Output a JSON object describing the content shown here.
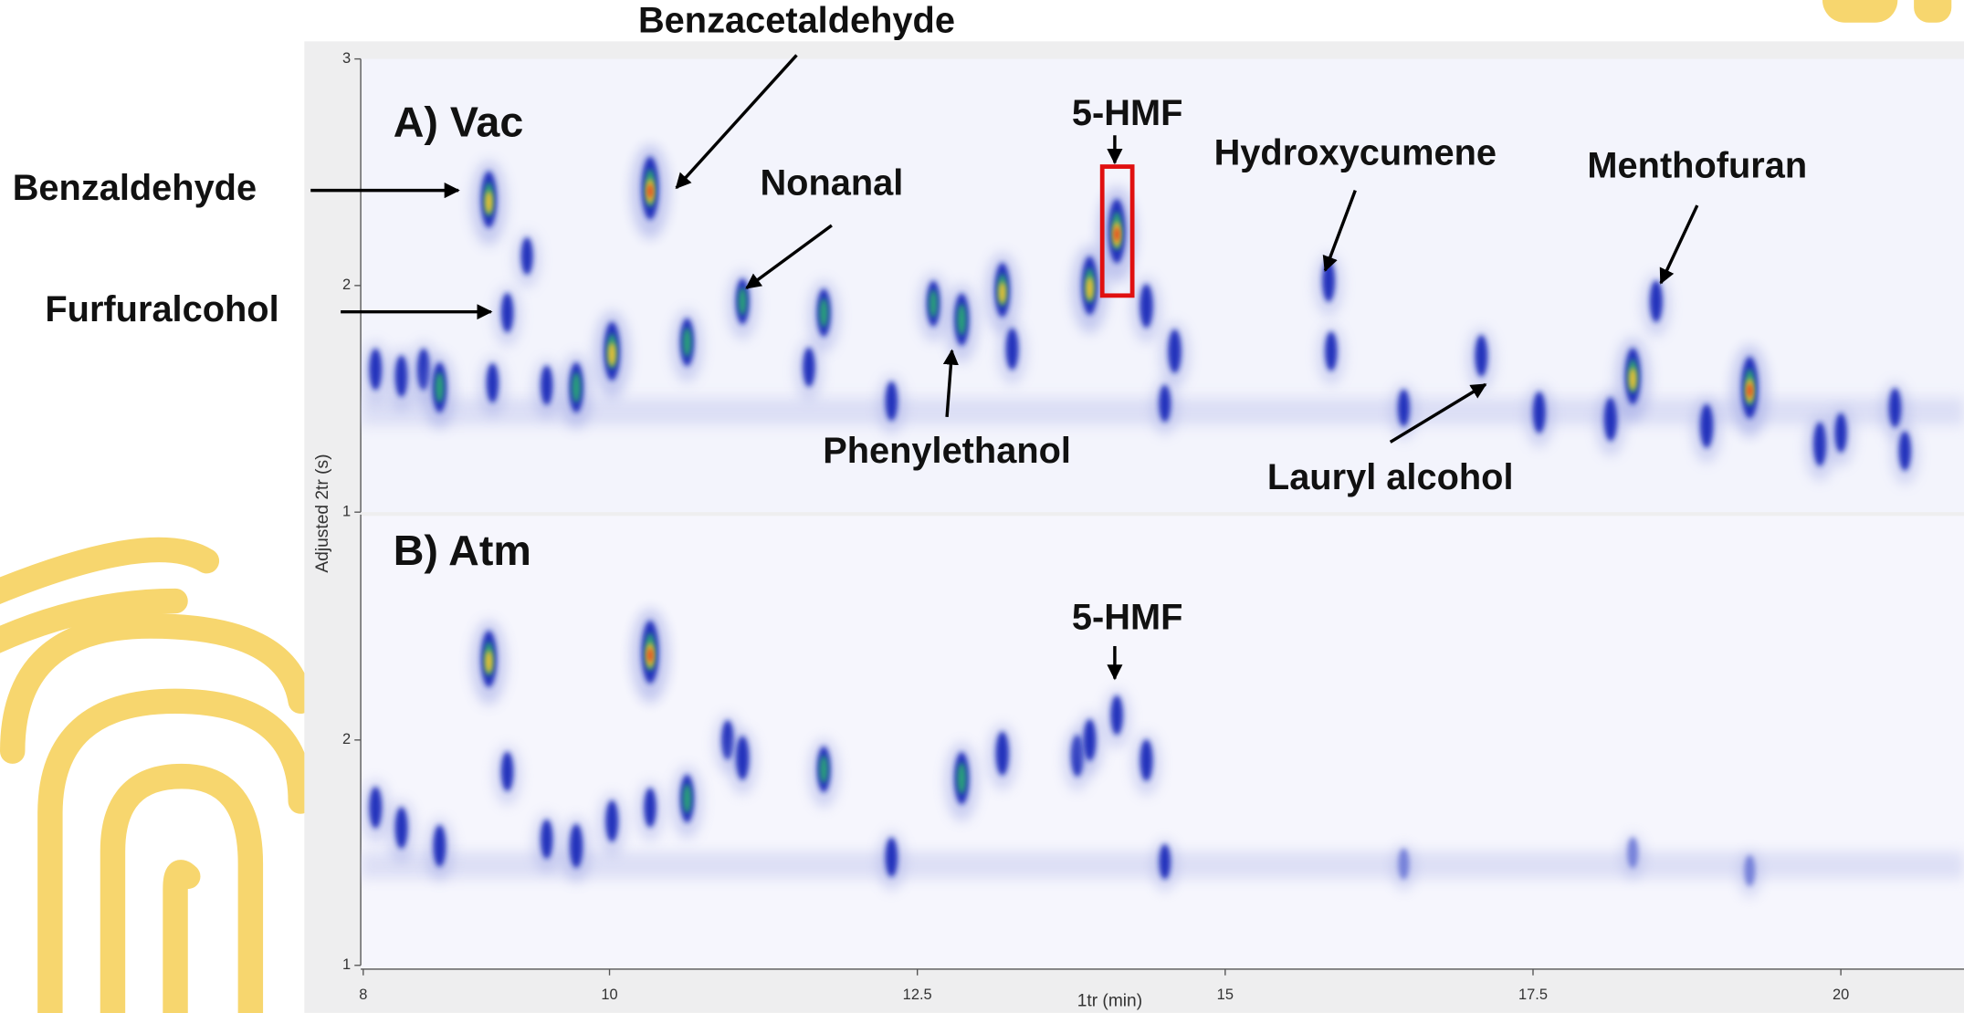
{
  "chart_data": [
    {
      "type": "scatter",
      "title": "A) Vac",
      "ylabel": "Adjusted 2tr (s)",
      "xlim": [
        8,
        21
      ],
      "ylim": [
        1,
        3
      ],
      "yticks": [
        1,
        2,
        3
      ],
      "annotations": [
        "Benzacetaldehyde",
        "Benzaldehyde",
        "Furfuralcohol",
        "Nonanal",
        "5-HMF",
        "Hydroxycumene",
        "Menthofuran",
        "Phenylethanol",
        "Lauryl alcohol"
      ],
      "peaks": {
        "x": [
          9.02,
          10.33,
          9.17,
          9.33,
          8.1,
          8.31,
          8.49,
          8.62,
          9.05,
          9.49,
          9.73,
          10.02,
          10.63,
          11.08,
          11.62,
          11.74,
          12.29,
          12.63,
          12.86,
          13.19,
          13.27,
          13.9,
          14.12,
          14.36,
          14.51,
          14.59,
          15.84,
          15.86,
          16.45,
          17.08,
          17.55,
          18.13,
          18.31,
          18.5,
          18.91,
          19.26,
          19.83,
          20.0,
          20.44,
          20.52
        ],
        "y": [
          2.38,
          2.43,
          1.88,
          2.13,
          1.63,
          1.6,
          1.63,
          1.55,
          1.57,
          1.56,
          1.55,
          1.71,
          1.75,
          1.93,
          1.64,
          1.88,
          1.49,
          1.92,
          1.85,
          1.98,
          1.72,
          2.0,
          2.24,
          1.91,
          1.48,
          1.71,
          2.02,
          1.71,
          1.46,
          1.69,
          1.44,
          1.41,
          1.6,
          1.93,
          1.38,
          1.55,
          1.3,
          1.35,
          1.46,
          1.27
        ],
        "intensity": [
          80,
          95,
          40,
          35,
          45,
          45,
          45,
          65,
          40,
          40,
          65,
          85,
          60,
          55,
          40,
          60,
          40,
          55,
          70,
          75,
          45,
          85,
          98,
          50,
          35,
          50,
          45,
          40,
          35,
          45,
          45,
          50,
          80,
          45,
          50,
          92,
          50,
          40,
          40,
          40
        ]
      }
    },
    {
      "type": "scatter",
      "title": "B) Atm",
      "xlabel": "1tr (min)",
      "xlim": [
        8,
        21
      ],
      "ylim": [
        1,
        3
      ],
      "yticks": [
        1,
        2
      ],
      "xticks": [
        8,
        10,
        12.5,
        15,
        17.5,
        20
      ],
      "annotations": [
        "5-HMF"
      ],
      "peaks": {
        "x": [
          9.02,
          10.33,
          8.1,
          8.31,
          8.62,
          9.17,
          9.49,
          9.73,
          10.02,
          10.33,
          10.63,
          10.96,
          11.08,
          11.74,
          12.29,
          12.86,
          13.19,
          13.8,
          13.9,
          14.12,
          14.36,
          14.51,
          16.45,
          18.31,
          19.26
        ],
        "y": [
          2.36,
          2.39,
          1.7,
          1.61,
          1.53,
          1.86,
          1.56,
          1.53,
          1.64,
          1.7,
          1.74,
          2.0,
          1.92,
          1.87,
          1.48,
          1.83,
          1.94,
          1.93,
          2.0,
          2.11,
          1.91,
          1.46,
          1.45,
          1.5,
          1.42
        ],
        "intensity": [
          80,
          95,
          45,
          45,
          45,
          40,
          40,
          50,
          45,
          40,
          60,
          40,
          50,
          55,
          40,
          70,
          50,
          45,
          45,
          40,
          45,
          30,
          20,
          20,
          20
        ]
      }
    }
  ]
}
